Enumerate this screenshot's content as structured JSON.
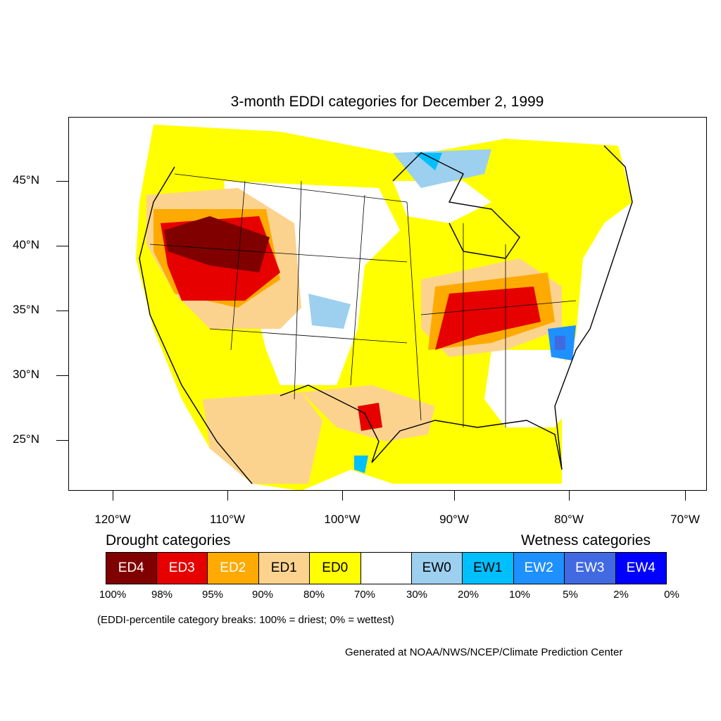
{
  "title": "3-month EDDI categories for December 2, 1999",
  "map": {
    "region": "Contiguous United States",
    "lat_labels": [
      "45°N",
      "40°N",
      "35°N",
      "30°N",
      "25°N"
    ],
    "lon_labels": [
      "120°W",
      "110°W",
      "100°W",
      "90°W",
      "80°W",
      "70°W"
    ]
  },
  "legend": {
    "drought_heading": "Drought categories",
    "wetness_heading": "Wetness categories",
    "categories": [
      {
        "label": "ED4",
        "color": "#800000",
        "text_color": "#ffffff"
      },
      {
        "label": "ED3",
        "color": "#e60000",
        "text_color": "#ffffff"
      },
      {
        "label": "ED2",
        "color": "#ffaa00",
        "text_color": "#ffffff"
      },
      {
        "label": "ED1",
        "color": "#fcd38e",
        "text_color": "#000000"
      },
      {
        "label": "ED0",
        "color": "#ffff00",
        "text_color": "#000000"
      },
      {
        "label": "",
        "color": "#ffffff",
        "text_color": "#000000"
      },
      {
        "label": "EW0",
        "color": "#9dcfef",
        "text_color": "#000000"
      },
      {
        "label": "EW1",
        "color": "#00bfff",
        "text_color": "#000000"
      },
      {
        "label": "EW2",
        "color": "#1e90ff",
        "text_color": "#ffffff"
      },
      {
        "label": "EW3",
        "color": "#4169e1",
        "text_color": "#ffffff"
      },
      {
        "label": "EW4",
        "color": "#0000ff",
        "text_color": "#ffffff"
      }
    ],
    "breaks": [
      "100%",
      "98%",
      "95%",
      "90%",
      "80%",
      "70%",
      "30%",
      "20%",
      "10%",
      "5%",
      "2%",
      "0%"
    ]
  },
  "note": "(EDDI-percentile category breaks: 100% = driest; 0% = wettest)",
  "credit": "Generated at NOAA/NWS/NCEP/Climate Prediction Center"
}
